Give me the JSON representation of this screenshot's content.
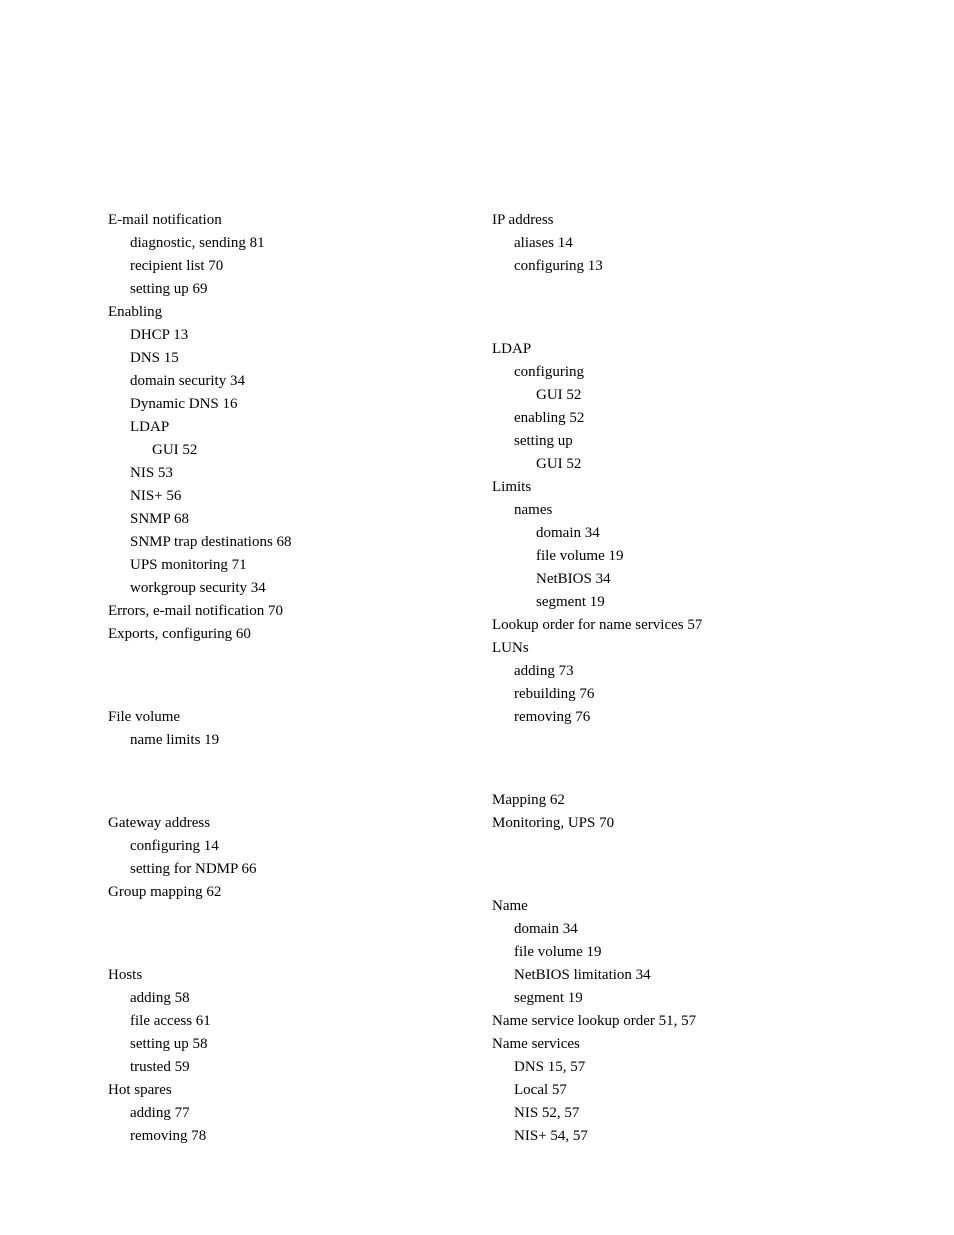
{
  "left": {
    "email": {
      "h": "E-mail notification",
      "diag": "diagnostic, sending 81",
      "recip": "recipient list 70",
      "setup": "setting up 69"
    },
    "enabling": {
      "h": "Enabling",
      "dhcp": "DHCP 13",
      "dns": "DNS 15",
      "domsec": "domain security 34",
      "dyndns": "Dynamic DNS 16",
      "ldap": "LDAP",
      "ldapgui": "GUI 52",
      "nis": "NIS 53",
      "nisplus": "NIS+ 56",
      "snmp": "SNMP 68",
      "snmptrap": "SNMP trap destinations 68",
      "ups": "UPS monitoring 71",
      "wgsec": "workgroup security 34"
    },
    "errors": "Errors, e-mail notification 70",
    "exports": "Exports, configuring 60",
    "filevol": {
      "h": "File volume",
      "name": "name limits 19"
    },
    "gateway": {
      "h": "Gateway address",
      "conf": "configuring 14",
      "ndmp": "setting for NDMP 66"
    },
    "groupmap": "Group mapping 62",
    "hosts": {
      "h": "Hosts",
      "add": "adding 58",
      "fa": "file access 61",
      "setup": "setting up 58",
      "trust": "trusted 59"
    },
    "hotspares": {
      "h": "Hot spares",
      "add": "adding 77",
      "rem": "removing 78"
    }
  },
  "right": {
    "ip": {
      "h": "IP address",
      "alias": "aliases 14",
      "conf": "configuring 13"
    },
    "ldap": {
      "h": "LDAP",
      "conf": "configuring",
      "confgui": "GUI 52",
      "enable": "enabling 52",
      "setup": "setting up",
      "setupgui": "GUI 52"
    },
    "limits": {
      "h": "Limits",
      "names": "names",
      "domain": "domain 34",
      "filevol": "file volume 19",
      "netbios": "NetBIOS 34",
      "segment": "segment 19"
    },
    "lookup": "Lookup order for name services 57",
    "luns": {
      "h": "LUNs",
      "add": "adding 73",
      "rebuild": "rebuilding 76",
      "rem": "removing 76"
    },
    "mapping": "Mapping 62",
    "monitoring": "Monitoring, UPS 70",
    "name": {
      "h": "Name",
      "domain": "domain 34",
      "filevol": "file volume 19",
      "netbios": "NetBIOS limitation 34",
      "segment": "segment 19"
    },
    "nslookup": "Name service lookup order 51, 57",
    "nameservices": {
      "h": "Name services",
      "dns": "DNS 15, 57",
      "local": "Local 57",
      "nis": "NIS 52, 57",
      "nisplus": "NIS+ 54, 57"
    }
  }
}
